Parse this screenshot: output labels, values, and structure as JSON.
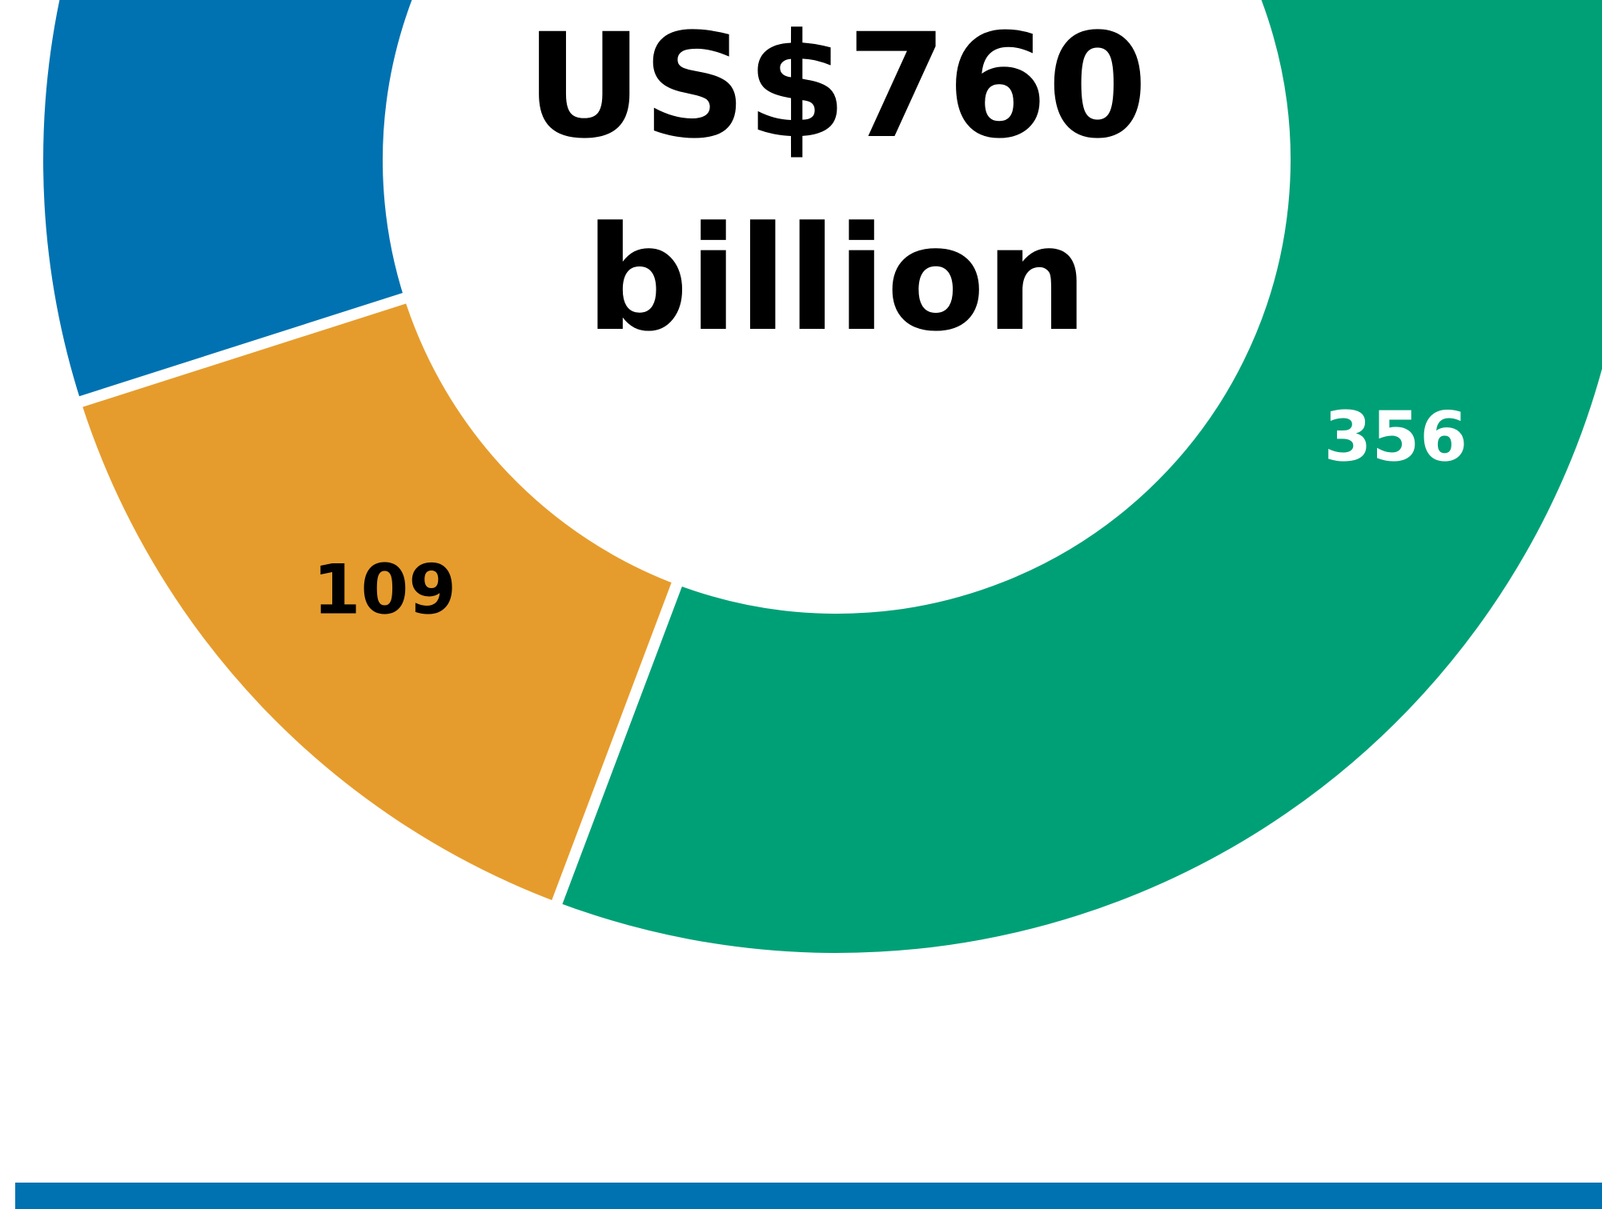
{
  "chart_data": {
    "type": "pie",
    "variant": "donut",
    "center_label": {
      "line1": "US$760",
      "line2": "billion"
    },
    "total": 760,
    "slices": [
      {
        "value": 356,
        "label": "356",
        "color": "#00A077",
        "label_color": "#ffffff"
      },
      {
        "value": 109,
        "label": "109",
        "color": "#E69C2C",
        "label_color": "#000000"
      },
      {
        "value": 295,
        "label": "",
        "color": "#0072B1",
        "label_color": "#ffffff"
      }
    ],
    "footer_band_color": "#0072B1"
  }
}
